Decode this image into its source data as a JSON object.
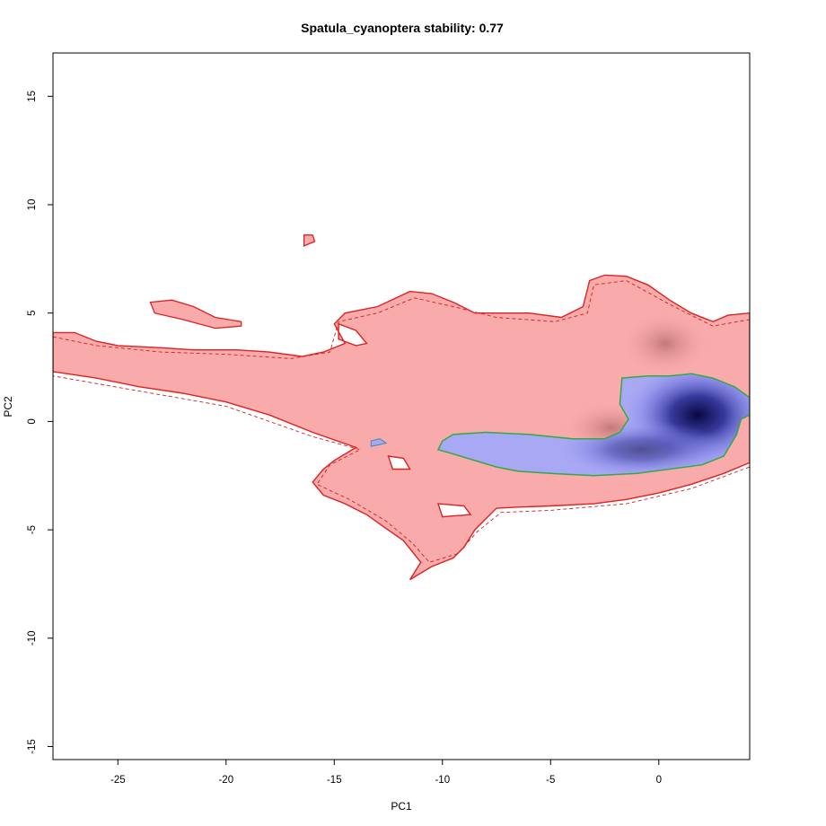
{
  "chart_data": {
    "type": "heatmap",
    "title": "Spatula_cyanoptera stability: 0.77",
    "xlabel": "PC1",
    "ylabel": "PC2",
    "xlim": [
      -28,
      4.2
    ],
    "ylim": [
      -15.6,
      17
    ],
    "x_ticks": [
      -25,
      -20,
      -15,
      -10,
      -5,
      0
    ],
    "y_ticks": [
      -15,
      -10,
      -5,
      0,
      5,
      10,
      15
    ],
    "grid": false,
    "legend": "none",
    "colors": {
      "background_region": "#f9aaaa",
      "background_contour": "#dd2222",
      "occupied_region": "#a8a8f4",
      "occupied_contour": "#33aa44",
      "inner_contour": "#4488aa",
      "density_peak": "#0a0c50",
      "density_mid": "#6a6adc",
      "pink_shade": "#c07a7a"
    },
    "background_region": [
      [
        -28,
        4.1
      ],
      [
        -27,
        4.1
      ],
      [
        -26,
        3.7
      ],
      [
        -25,
        3.5
      ],
      [
        -23,
        3.4
      ],
      [
        -21.5,
        3.3
      ],
      [
        -19.5,
        3.3
      ],
      [
        -18,
        3.2
      ],
      [
        -16.5,
        3.0
      ],
      [
        -15.5,
        3.2
      ],
      [
        -14.5,
        3.6
      ],
      [
        -15,
        4.5
      ],
      [
        -14.5,
        5.0
      ],
      [
        -13,
        5.3
      ],
      [
        -11.5,
        6.0
      ],
      [
        -10.5,
        5.9
      ],
      [
        -9.5,
        5.5
      ],
      [
        -8.5,
        5.0
      ],
      [
        -7,
        5.0
      ],
      [
        -6,
        5.0
      ],
      [
        -4.5,
        4.8
      ],
      [
        -3.5,
        5.3
      ],
      [
        -3.2,
        6.5
      ],
      [
        -2.5,
        6.75
      ],
      [
        -1.5,
        6.7
      ],
      [
        -0.5,
        6.3
      ],
      [
        0.5,
        5.6
      ],
      [
        1.5,
        5.0
      ],
      [
        2.5,
        4.6
      ],
      [
        3.2,
        4.9
      ],
      [
        4.2,
        5.0
      ],
      [
        4.2,
        -1.9
      ],
      [
        3.0,
        -2.4
      ],
      [
        1.5,
        -2.9
      ],
      [
        0,
        -3.3
      ],
      [
        -1.5,
        -3.6
      ],
      [
        -3,
        -3.8
      ],
      [
        -5,
        -3.9
      ],
      [
        -6.5,
        -3.95
      ],
      [
        -7.5,
        -4.0
      ],
      [
        -8,
        -4.5
      ],
      [
        -8.5,
        -5.0
      ],
      [
        -9,
        -5.8
      ],
      [
        -9.5,
        -6.3
      ],
      [
        -10.5,
        -6.7
      ],
      [
        -11.5,
        -7.3
      ],
      [
        -11.0,
        -6.5
      ],
      [
        -11.8,
        -5.5
      ],
      [
        -12.8,
        -4.8
      ],
      [
        -13.5,
        -4.3
      ],
      [
        -14.5,
        -3.8
      ],
      [
        -15.5,
        -3.4
      ],
      [
        -16,
        -2.8
      ],
      [
        -15.5,
        -2.2
      ],
      [
        -15,
        -1.8
      ],
      [
        -14,
        -1.2
      ],
      [
        -16,
        -0.5
      ],
      [
        -18,
        0.3
      ],
      [
        -20,
        0.9
      ],
      [
        -22,
        1.3
      ],
      [
        -24,
        1.6
      ],
      [
        -26,
        2.0
      ],
      [
        -28,
        2.3
      ]
    ],
    "background_holes": [
      [
        [
          -14.8,
          4.5
        ],
        [
          -14.8,
          3.8
        ],
        [
          -14,
          3.5
        ],
        [
          -13.5,
          3.6
        ],
        [
          -14,
          4.2
        ]
      ],
      [
        [
          -12.5,
          -1.6
        ],
        [
          -11.8,
          -1.7
        ],
        [
          -11.5,
          -2.2
        ],
        [
          -12.3,
          -2.2
        ]
      ],
      [
        [
          -10.2,
          -3.8
        ],
        [
          -9.0,
          -3.9
        ],
        [
          -8.7,
          -4.3
        ],
        [
          -10,
          -4.4
        ]
      ]
    ],
    "background_islands": [
      [
        [
          -23.5,
          5.5
        ],
        [
          -22.5,
          5.6
        ],
        [
          -21.5,
          5.3
        ],
        [
          -20.5,
          4.8
        ],
        [
          -19.3,
          4.6
        ],
        [
          -19.3,
          4.4
        ],
        [
          -20.5,
          4.3
        ],
        [
          -22,
          4.7
        ],
        [
          -23.3,
          5.0
        ]
      ],
      [
        [
          -16.4,
          8.6
        ],
        [
          -16.0,
          8.6
        ],
        [
          -15.9,
          8.3
        ],
        [
          -16.4,
          8.1
        ]
      ]
    ],
    "background_dashed_contour": [
      [
        -28,
        3.9
      ],
      [
        -26,
        3.5
      ],
      [
        -23,
        3.2
      ],
      [
        -20,
        3.1
      ],
      [
        -17,
        2.9
      ],
      [
        -15.2,
        3.2
      ],
      [
        -14.8,
        4.6
      ],
      [
        -13,
        5.0
      ],
      [
        -11.3,
        5.7
      ],
      [
        -9.5,
        5.3
      ],
      [
        -7.5,
        4.8
      ],
      [
        -4.8,
        4.6
      ],
      [
        -3.3,
        5.0
      ],
      [
        -3.0,
        6.3
      ],
      [
        -1.5,
        6.5
      ],
      [
        0.5,
        5.4
      ],
      [
        2.5,
        4.4
      ],
      [
        4.2,
        4.7
      ],
      [
        4.2,
        -2.1
      ],
      [
        1.5,
        -3.1
      ],
      [
        -1.5,
        -3.8
      ],
      [
        -5,
        -4.1
      ],
      [
        -7.3,
        -4.2
      ],
      [
        -8.4,
        -5.1
      ],
      [
        -9.3,
        -6.1
      ],
      [
        -10.6,
        -6.5
      ],
      [
        -11.4,
        -5.6
      ],
      [
        -12.6,
        -4.6
      ],
      [
        -14.3,
        -3.6
      ],
      [
        -15.8,
        -2.9
      ],
      [
        -15.2,
        -2.0
      ],
      [
        -13.8,
        -1.3
      ],
      [
        -16,
        -0.7
      ],
      [
        -20,
        0.7
      ],
      [
        -24,
        1.4
      ],
      [
        -28,
        2.1
      ]
    ],
    "occupied_region": [
      [
        -10,
        -0.9
      ],
      [
        -9.5,
        -0.6
      ],
      [
        -8,
        -0.5
      ],
      [
        -6,
        -0.6
      ],
      [
        -4,
        -0.8
      ],
      [
        -2.5,
        -0.8
      ],
      [
        -1.8,
        -0.5
      ],
      [
        -1.4,
        0.1
      ],
      [
        -1.8,
        0.8
      ],
      [
        -1.7,
        2.0
      ],
      [
        -0.5,
        2.1
      ],
      [
        0.5,
        2.1
      ],
      [
        1.5,
        2.2
      ],
      [
        2.5,
        2.0
      ],
      [
        3.5,
        1.6
      ],
      [
        4.2,
        1.1
      ],
      [
        4.2,
        0.3
      ],
      [
        3.8,
        0.1
      ],
      [
        3.6,
        -0.6
      ],
      [
        3.0,
        -1.6
      ],
      [
        2.0,
        -2.0
      ],
      [
        0.5,
        -2.2
      ],
      [
        -1,
        -2.4
      ],
      [
        -3,
        -2.5
      ],
      [
        -5,
        -2.4
      ],
      [
        -6.5,
        -2.3
      ],
      [
        -7.5,
        -2.1
      ],
      [
        -8.5,
        -1.8
      ],
      [
        -9.5,
        -1.5
      ],
      [
        -10.2,
        -1.3
      ]
    ],
    "occupied_islands": [
      [
        [
          -13.3,
          -0.9
        ],
        [
          -12.9,
          -0.8
        ],
        [
          -12.6,
          -1.0
        ],
        [
          -13.3,
          -1.15
        ]
      ]
    ],
    "density_peak": {
      "x": 1.8,
      "y": 0.3
    },
    "density_shade": {
      "x": -2.2,
      "y": -0.3
    },
    "density_shade_upper": {
      "x": 0.3,
      "y": 3.6
    }
  }
}
